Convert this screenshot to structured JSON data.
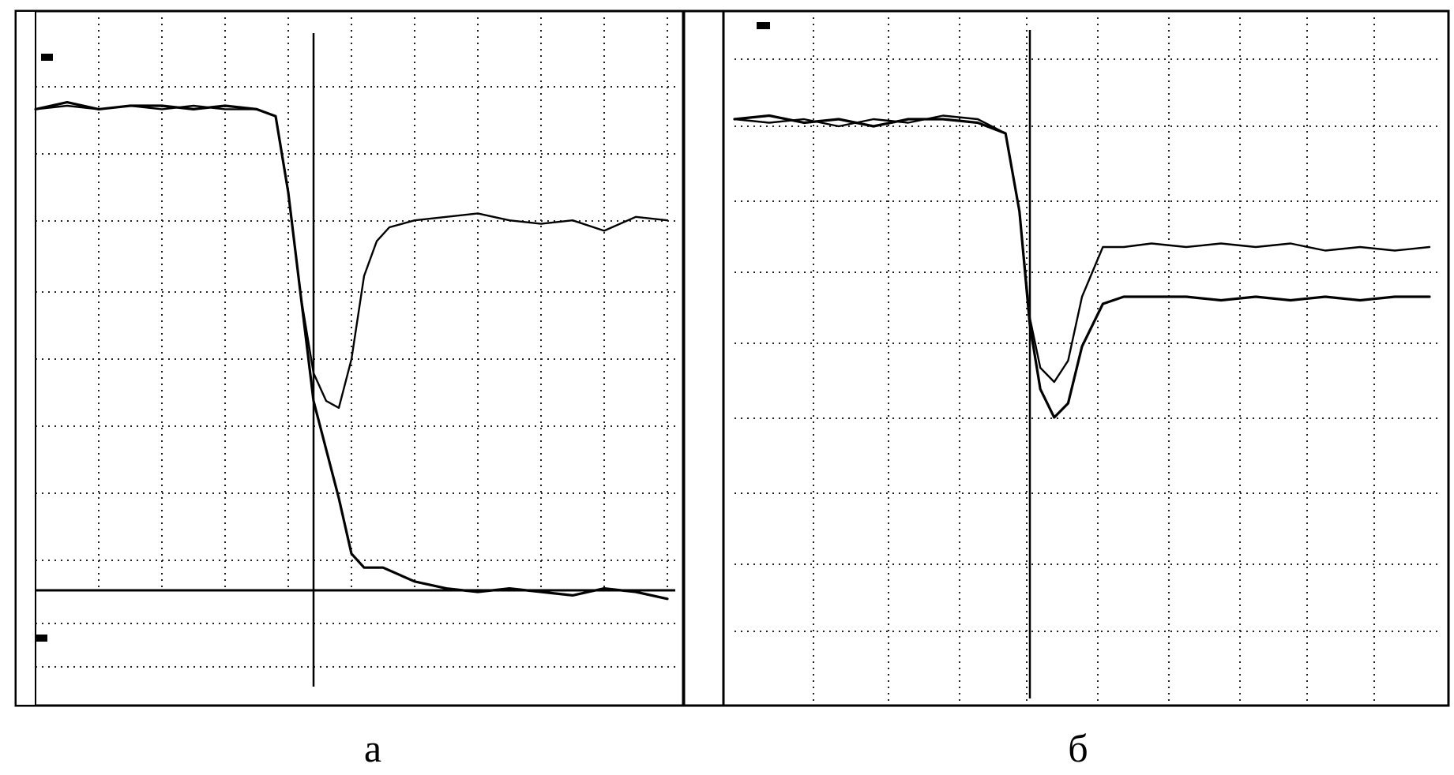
{
  "captions": {
    "left": "а",
    "right": "б"
  },
  "colors": {
    "background": "#ffffff",
    "ink": "#000000"
  },
  "chart_data": [
    {
      "type": "line",
      "panel": "а",
      "grid": true,
      "xlim": [
        0,
        10
      ],
      "ylim": [
        0,
        10
      ],
      "cursor_x": 4.4,
      "series": [
        {
          "x": [
            0,
            0.5,
            1,
            1.5,
            2,
            2.5,
            3,
            3.5,
            3.8,
            4.0,
            4.2,
            4.4,
            4.6,
            4.8,
            5.0,
            5.2,
            5.4,
            5.6,
            6.0,
            6.5,
            7.0,
            7.5,
            8.0,
            8.5,
            9.0,
            9.5,
            10
          ],
          "values": [
            8.2,
            8.25,
            8.2,
            8.25,
            8.2,
            8.25,
            8.2,
            8.2,
            8.1,
            7.0,
            5.5,
            4.4,
            4.0,
            3.9,
            4.6,
            5.8,
            6.3,
            6.5,
            6.6,
            6.65,
            6.7,
            6.6,
            6.55,
            6.6,
            6.45,
            6.65,
            6.6
          ]
        },
        {
          "x": [
            0,
            0.5,
            1,
            1.5,
            2,
            2.5,
            3,
            3.5,
            3.8,
            4.0,
            4.2,
            4.4,
            4.6,
            4.8,
            5.0,
            5.2,
            5.5,
            6.0,
            6.5,
            7.0,
            7.5,
            8.0,
            8.5,
            9.0,
            9.5,
            10
          ],
          "values": [
            8.2,
            8.3,
            8.2,
            8.25,
            8.25,
            8.2,
            8.25,
            8.2,
            8.1,
            7.0,
            5.5,
            4.0,
            3.3,
            2.6,
            1.8,
            1.6,
            1.6,
            1.4,
            1.3,
            1.25,
            1.3,
            1.25,
            1.2,
            1.3,
            1.25,
            1.15
          ]
        }
      ]
    },
    {
      "type": "line",
      "panel": "б",
      "grid": true,
      "xlim": [
        0,
        10
      ],
      "ylim": [
        0,
        10
      ],
      "cursor_x": 4.25,
      "series": [
        {
          "x": [
            0,
            0.5,
            1,
            1.5,
            2,
            2.5,
            3,
            3.5,
            3.9,
            4.1,
            4.25,
            4.4,
            4.6,
            4.8,
            5.0,
            5.3,
            5.6,
            6,
            6.5,
            7,
            7.5,
            8,
            8.5,
            9,
            9.5,
            10
          ],
          "values": [
            8.1,
            8.05,
            8.1,
            8.0,
            8.1,
            8.05,
            8.15,
            8.1,
            7.9,
            6.8,
            5.3,
            4.6,
            4.4,
            4.7,
            5.6,
            6.3,
            6.3,
            6.35,
            6.3,
            6.35,
            6.3,
            6.35,
            6.25,
            6.3,
            6.25,
            6.3
          ]
        },
        {
          "x": [
            0,
            0.5,
            1,
            1.5,
            2,
            2.5,
            3,
            3.5,
            3.9,
            4.1,
            4.25,
            4.4,
            4.6,
            4.8,
            5.0,
            5.3,
            5.6,
            6,
            6.5,
            7,
            7.5,
            8,
            8.5,
            9,
            9.5,
            10
          ],
          "values": [
            8.1,
            8.15,
            8.05,
            8.1,
            8.0,
            8.1,
            8.1,
            8.05,
            7.9,
            6.8,
            5.2,
            4.3,
            3.9,
            4.1,
            4.9,
            5.5,
            5.6,
            5.6,
            5.6,
            5.55,
            5.6,
            5.55,
            5.6,
            5.55,
            5.6,
            5.6
          ]
        }
      ]
    }
  ]
}
